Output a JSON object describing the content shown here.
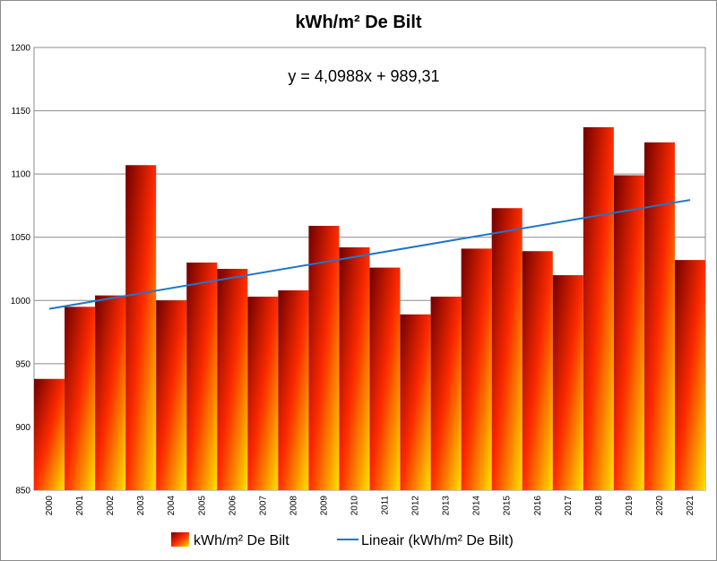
{
  "chart_data": {
    "type": "bar",
    "title": "kWh/m² De Bilt",
    "categories": [
      "2000",
      "2001",
      "2002",
      "2003",
      "2004",
      "2005",
      "2006",
      "2007",
      "2008",
      "2009",
      "2010",
      "2011",
      "2012",
      "2013",
      "2014",
      "2015",
      "2016",
      "2017",
      "2018",
      "2019",
      "2020",
      "2021"
    ],
    "series": [
      {
        "name": "kWh/m² De Bilt",
        "values": [
          938,
          995,
          1004,
          1107,
          1000,
          1030,
          1025,
          1003,
          1008,
          1059,
          1042,
          1026,
          989,
          1003,
          1041,
          1073,
          1039,
          1020,
          1137,
          1099,
          1125,
          1032
        ]
      }
    ],
    "trendline": {
      "name": "Lineair (kWh/m² De Bilt)",
      "slope": 4.0988,
      "intercept": 989.31,
      "equation": "y = 4,0988x + 989,31",
      "color": "#1f77c8"
    },
    "ylim": [
      850,
      1200
    ],
    "yticks": [
      "850",
      "900",
      "950",
      "1000",
      "1050",
      "1100",
      "1150",
      "1200"
    ],
    "xlabel": "",
    "ylabel": "",
    "grid": true,
    "legend_position": "bottom",
    "colors": {
      "bar_dark": "#6e0000",
      "bar_mid": "#ff2a00",
      "bar_light": "#ffe400",
      "grid": "#8c8c8c"
    }
  }
}
